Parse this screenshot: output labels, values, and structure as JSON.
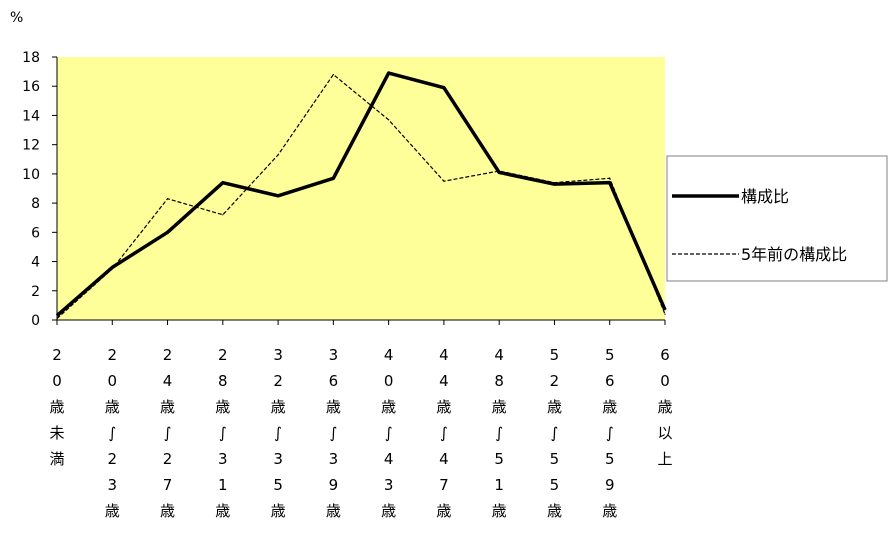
{
  "chart_data": {
    "type": "line",
    "y_unit_label": "%",
    "ylim": [
      0,
      18
    ],
    "y_ticks": [
      "0",
      "2",
      "4",
      "6",
      "8",
      "10",
      "12",
      "14",
      "16",
      "18"
    ],
    "grid": false,
    "plot_background": "#FFFF99",
    "legend_position": "right",
    "categories": [
      "20歳未満",
      "20歳～23歳",
      "24歳～27歳",
      "28歳～31歳",
      "32歳～35歳",
      "36歳～39歳",
      "40歳～43歳",
      "44歳～47歳",
      "48歳～51歳",
      "52歳～55歳",
      "56歳～59歳",
      "60歳以上"
    ],
    "category_labels_vertical": [
      [
        "2",
        "0",
        "歳",
        "未",
        "満"
      ],
      [
        "2",
        "0",
        "歳",
        "∫",
        "2",
        "3",
        "歳"
      ],
      [
        "2",
        "4",
        "歳",
        "∫",
        "2",
        "7",
        "歳"
      ],
      [
        "2",
        "8",
        "歳",
        "∫",
        "3",
        "1",
        "歳"
      ],
      [
        "3",
        "2",
        "歳",
        "∫",
        "3",
        "5",
        "歳"
      ],
      [
        "3",
        "6",
        "歳",
        "∫",
        "3",
        "9",
        "歳"
      ],
      [
        "4",
        "0",
        "歳",
        "∫",
        "4",
        "3",
        "歳"
      ],
      [
        "4",
        "4",
        "歳",
        "∫",
        "4",
        "7",
        "歳"
      ],
      [
        "4",
        "8",
        "歳",
        "∫",
        "5",
        "1",
        "歳"
      ],
      [
        "5",
        "2",
        "歳",
        "∫",
        "5",
        "5",
        "歳"
      ],
      [
        "5",
        "6",
        "歳",
        "∫",
        "5",
        "9",
        "歳"
      ],
      [
        "6",
        "0",
        "歳",
        "以",
        "上"
      ]
    ],
    "series": [
      {
        "name": "構成比",
        "style": "solid-thick",
        "color": "#000000",
        "values": [
          0.3,
          3.6,
          6.0,
          9.4,
          8.5,
          9.7,
          16.9,
          15.9,
          10.1,
          9.3,
          9.4,
          0.7
        ]
      },
      {
        "name": "5年前の構成比",
        "style": "dashed-thin",
        "color": "#000000",
        "values": [
          0.1,
          3.5,
          8.3,
          7.2,
          11.3,
          16.8,
          13.7,
          9.5,
          10.2,
          9.4,
          9.7,
          0.4
        ]
      }
    ]
  }
}
